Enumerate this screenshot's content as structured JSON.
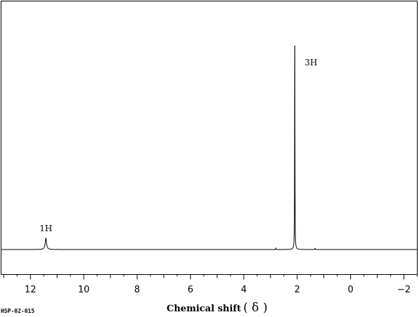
{
  "chart_data": {
    "type": "line",
    "xlabel": "Chemical shift",
    "xlabel_symbol": "δ",
    "xlim": [
      13.1,
      -2.5
    ],
    "x_reversed": true,
    "ylim": [
      0,
      1.0
    ],
    "grid": false,
    "ticks": [
      {
        "value": 12,
        "label": "12"
      },
      {
        "value": 10,
        "label": "10"
      },
      {
        "value": 8,
        "label": "8"
      },
      {
        "value": 6,
        "label": "6"
      },
      {
        "value": 4,
        "label": "4"
      },
      {
        "value": 2,
        "label": "2"
      },
      {
        "value": 0,
        "label": "0"
      },
      {
        "value": -2,
        "label": "−2"
      }
    ],
    "peaks": [
      {
        "shift": 11.42,
        "height": 0.05,
        "width": 0.06,
        "label": "1H"
      },
      {
        "shift": 2.09,
        "height": 1.0,
        "width": 0.012,
        "label": "3H"
      },
      {
        "shift": 2.8,
        "height": 0.008,
        "width": 0.01,
        "label": ""
      },
      {
        "shift": 1.33,
        "height": 0.006,
        "width": 0.01,
        "label": ""
      }
    ]
  },
  "footer": {
    "code": "HSP-02-015"
  }
}
